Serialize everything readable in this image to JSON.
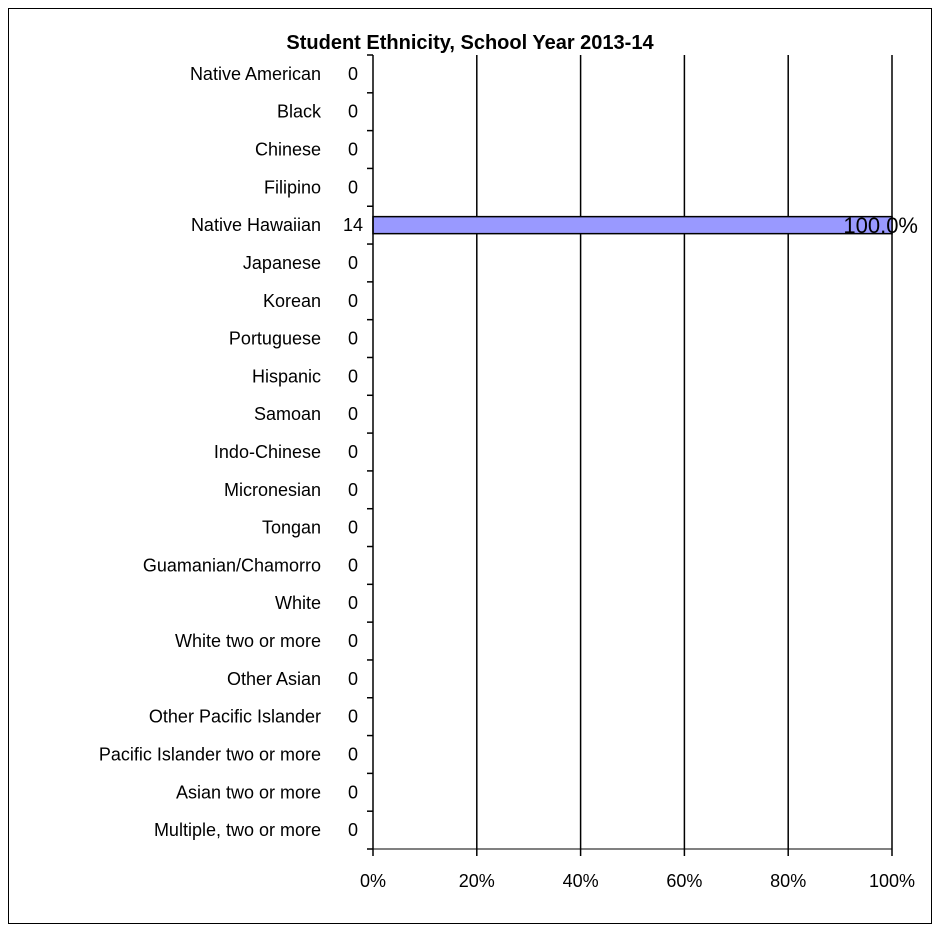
{
  "chart_data": {
    "type": "bar",
    "orientation": "horizontal",
    "title": "Student Ethnicity, School Year 2013-14",
    "categories": [
      "Native American",
      "Black",
      "Chinese",
      "Filipino",
      "Native Hawaiian",
      "Japanese",
      "Korean",
      "Portuguese",
      "Hispanic",
      "Samoan",
      "Indo-Chinese",
      "Micronesian",
      "Tongan",
      "Guamanian/Chamorro",
      "White",
      "White two or more",
      "Other Asian",
      "Other Pacific Islander",
      "Pacific Islander two or more",
      "Asian two or more",
      "Multiple, two or more"
    ],
    "counts": [
      "0",
      "0",
      "0",
      "0",
      "14",
      "0",
      "0",
      "0",
      "0",
      "0",
      "0",
      "0",
      "0",
      "0",
      "0",
      "0",
      "0",
      "0",
      "0",
      "0",
      "0"
    ],
    "values": [
      0,
      0,
      0,
      0,
      100,
      0,
      0,
      0,
      0,
      0,
      0,
      0,
      0,
      0,
      0,
      0,
      0,
      0,
      0,
      0,
      0
    ],
    "data_labels": [
      "",
      "",
      "",
      "",
      "100.0%",
      "",
      "",
      "",
      "",
      "",
      "",
      "",
      "",
      "",
      "",
      "",
      "",
      "",
      "",
      "",
      ""
    ],
    "xticks": [
      "0%",
      "20%",
      "40%",
      "60%",
      "80%",
      "100%"
    ],
    "xlim": [
      0,
      100
    ],
    "grid": "vertical",
    "bar_color": "#9999ff"
  }
}
